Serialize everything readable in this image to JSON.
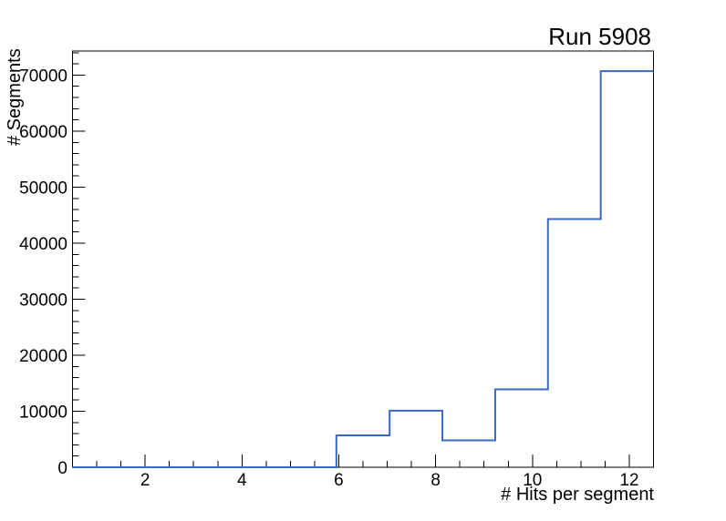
{
  "page": {
    "title": "Run 5908"
  },
  "chart_data": {
    "type": "bar",
    "subtype": "step-histogram",
    "title": "Run 5908",
    "xlabel": "# Hits per segment",
    "ylabel": "# Segments",
    "xlim": [
      0.5,
      12.5
    ],
    "ylim": [
      0,
      74300
    ],
    "bin_edges": [
      0.5,
      1.59,
      2.68,
      3.77,
      4.86,
      5.95,
      7.05,
      8.14,
      9.23,
      10.32,
      11.41,
      12.5
    ],
    "values": [
      0,
      0,
      0,
      0,
      0,
      5700,
      10100,
      4800,
      13900,
      44300,
      70700
    ],
    "xticks": [
      2,
      4,
      6,
      8,
      10,
      12
    ],
    "xtick_minor_step": 0.5,
    "yticks": [
      0,
      10000,
      20000,
      30000,
      40000,
      50000,
      60000,
      70000
    ],
    "ytick_minor_step": 2000,
    "grid": false,
    "legend_position": null,
    "line_color": "#3a68c4",
    "axis_color": "#000000",
    "background_color": "#ffffff"
  }
}
